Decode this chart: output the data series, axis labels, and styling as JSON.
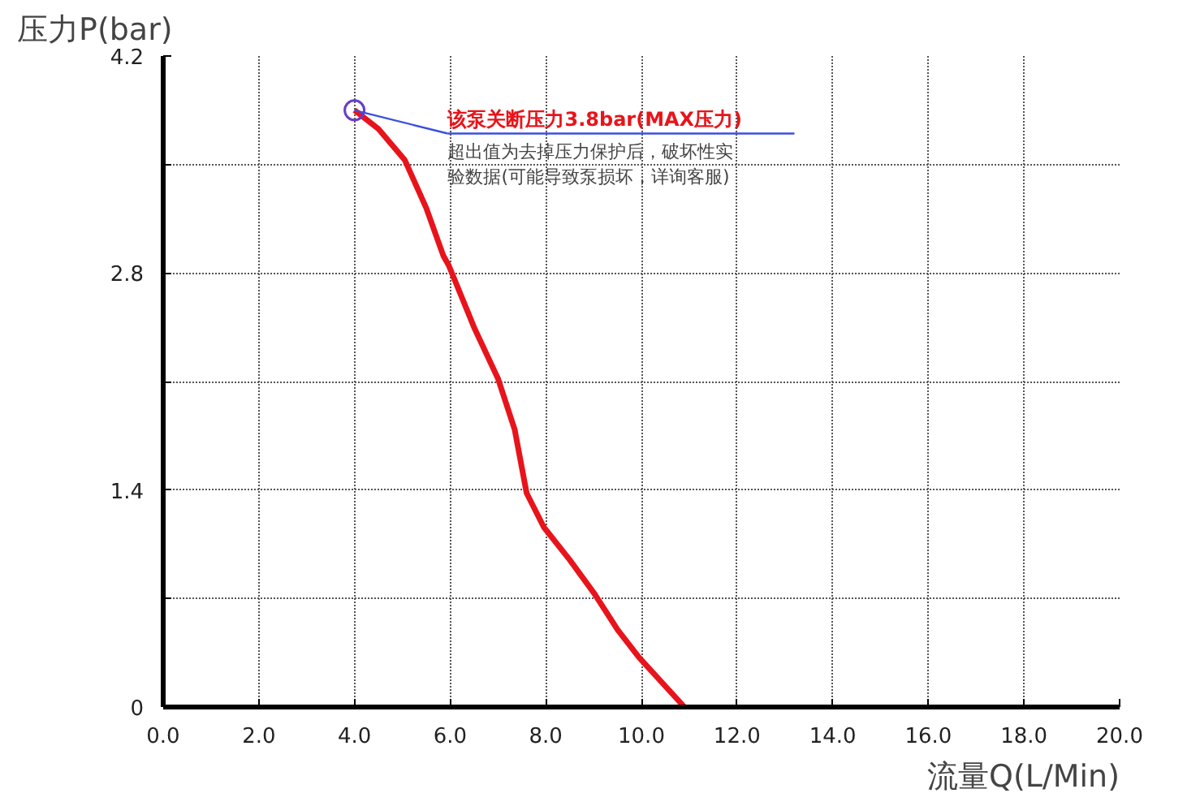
{
  "chart_data": {
    "type": "line",
    "xlabel": "流量Q(L/Min)",
    "ylabel": "压力P(bar)",
    "x": [
      4.0,
      4.5,
      5.05,
      5.5,
      5.86,
      5.97,
      6.5,
      7.0,
      7.35,
      7.6,
      7.96,
      8.5,
      9.02,
      9.5,
      9.95,
      10.9
    ],
    "series": [
      {
        "color": "#e8141b",
        "values": [
          3.85,
          3.73,
          3.53,
          3.22,
          2.91,
          2.85,
          2.45,
          2.12,
          1.79,
          1.38,
          1.16,
          0.95,
          0.73,
          0.5,
          0.32,
          0
        ]
      }
    ],
    "xlim": [
      0,
      20
    ],
    "ylim": [
      0,
      4.2
    ],
    "xticks": [
      {
        "value": 0,
        "label": "0.0"
      },
      {
        "value": 2,
        "label": "2.0"
      },
      {
        "value": 4,
        "label": "4.0"
      },
      {
        "value": 6,
        "label": "6.0"
      },
      {
        "value": 8,
        "label": "8.0"
      },
      {
        "value": 10,
        "label": "10.0"
      },
      {
        "value": 12,
        "label": "12.0"
      },
      {
        "value": 14,
        "label": "14.0"
      },
      {
        "value": 16,
        "label": "16.0"
      },
      {
        "value": 18,
        "label": "18.0"
      },
      {
        "value": 20,
        "label": "20.0"
      }
    ],
    "yticks": [
      0,
      {
        "value": 0.7,
        "label": null
      },
      1.4,
      {
        "value": 2.1,
        "label": null
      },
      2.8,
      {
        "value": 3.5,
        "label": null
      },
      4.2
    ],
    "grid": true,
    "marker": "none",
    "line_style": "solid",
    "annotations": [
      {
        "text": "该泵关断压力3.8bar(MAX压力)",
        "x": 4.0,
        "y": 3.85
      },
      "超出值为去掉压力保护后，破坏性实",
      "验数据(可能导致泵损坏，详询客服)"
    ]
  }
}
